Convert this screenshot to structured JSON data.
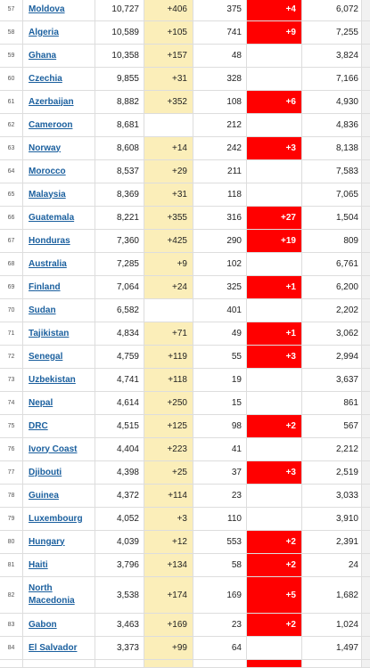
{
  "colors": {
    "new_cases_highlight": "#fbeeb9",
    "new_deaths_highlight": "#ff0000",
    "link": "#1a5f9e"
  },
  "rows": [
    {
      "rank": "57",
      "country": "Moldova",
      "total_cases": "10,727",
      "new_cases": "+406",
      "total_deaths": "375",
      "new_deaths": "+4",
      "recovered": "6,072"
    },
    {
      "rank": "58",
      "country": "Algeria",
      "total_cases": "10,589",
      "new_cases": "+105",
      "total_deaths": "741",
      "new_deaths": "+9",
      "recovered": "7,255"
    },
    {
      "rank": "59",
      "country": "Ghana",
      "total_cases": "10,358",
      "new_cases": "+157",
      "total_deaths": "48",
      "new_deaths": "",
      "recovered": "3,824"
    },
    {
      "rank": "60",
      "country": "Czechia",
      "total_cases": "9,855",
      "new_cases": "+31",
      "total_deaths": "328",
      "new_deaths": "",
      "recovered": "7,166"
    },
    {
      "rank": "61",
      "country": "Azerbaijan",
      "total_cases": "8,882",
      "new_cases": "+352",
      "total_deaths": "108",
      "new_deaths": "+6",
      "recovered": "4,930"
    },
    {
      "rank": "62",
      "country": "Cameroon",
      "total_cases": "8,681",
      "new_cases": "",
      "total_deaths": "212",
      "new_deaths": "",
      "recovered": "4,836"
    },
    {
      "rank": "63",
      "country": "Norway",
      "total_cases": "8,608",
      "new_cases": "+14",
      "total_deaths": "242",
      "new_deaths": "+3",
      "recovered": "8,138"
    },
    {
      "rank": "64",
      "country": "Morocco",
      "total_cases": "8,537",
      "new_cases": "+29",
      "total_deaths": "211",
      "new_deaths": "",
      "recovered": "7,583"
    },
    {
      "rank": "65",
      "country": "Malaysia",
      "total_cases": "8,369",
      "new_cases": "+31",
      "total_deaths": "118",
      "new_deaths": "",
      "recovered": "7,065"
    },
    {
      "rank": "66",
      "country": "Guatemala",
      "total_cases": "8,221",
      "new_cases": "+355",
      "total_deaths": "316",
      "new_deaths": "+27",
      "recovered": "1,504"
    },
    {
      "rank": "67",
      "country": "Honduras",
      "total_cases": "7,360",
      "new_cases": "+425",
      "total_deaths": "290",
      "new_deaths": "+19",
      "recovered": "809"
    },
    {
      "rank": "68",
      "country": "Australia",
      "total_cases": "7,285",
      "new_cases": "+9",
      "total_deaths": "102",
      "new_deaths": "",
      "recovered": "6,761"
    },
    {
      "rank": "69",
      "country": "Finland",
      "total_cases": "7,064",
      "new_cases": "+24",
      "total_deaths": "325",
      "new_deaths": "+1",
      "recovered": "6,200"
    },
    {
      "rank": "70",
      "country": "Sudan",
      "total_cases": "6,582",
      "new_cases": "",
      "total_deaths": "401",
      "new_deaths": "",
      "recovered": "2,202"
    },
    {
      "rank": "71",
      "country": "Tajikistan",
      "total_cases": "4,834",
      "new_cases": "+71",
      "total_deaths": "49",
      "new_deaths": "+1",
      "recovered": "3,062"
    },
    {
      "rank": "72",
      "country": "Senegal",
      "total_cases": "4,759",
      "new_cases": "+119",
      "total_deaths": "55",
      "new_deaths": "+3",
      "recovered": "2,994"
    },
    {
      "rank": "73",
      "country": "Uzbekistan",
      "total_cases": "4,741",
      "new_cases": "+118",
      "total_deaths": "19",
      "new_deaths": "",
      "recovered": "3,637"
    },
    {
      "rank": "74",
      "country": "Nepal",
      "total_cases": "4,614",
      "new_cases": "+250",
      "total_deaths": "15",
      "new_deaths": "",
      "recovered": "861"
    },
    {
      "rank": "75",
      "country": "DRC",
      "total_cases": "4,515",
      "new_cases": "+125",
      "total_deaths": "98",
      "new_deaths": "+2",
      "recovered": "567"
    },
    {
      "rank": "76",
      "country": "Ivory Coast",
      "total_cases": "4,404",
      "new_cases": "+223",
      "total_deaths": "41",
      "new_deaths": "",
      "recovered": "2,212"
    },
    {
      "rank": "77",
      "country": "Djibouti",
      "total_cases": "4,398",
      "new_cases": "+25",
      "total_deaths": "37",
      "new_deaths": "+3",
      "recovered": "2,519"
    },
    {
      "rank": "78",
      "country": "Guinea",
      "total_cases": "4,372",
      "new_cases": "+114",
      "total_deaths": "23",
      "new_deaths": "",
      "recovered": "3,033"
    },
    {
      "rank": "79",
      "country": "Luxembourg",
      "total_cases": "4,052",
      "new_cases": "+3",
      "total_deaths": "110",
      "new_deaths": "",
      "recovered": "3,910"
    },
    {
      "rank": "80",
      "country": "Hungary",
      "total_cases": "4,039",
      "new_cases": "+12",
      "total_deaths": "553",
      "new_deaths": "+2",
      "recovered": "2,391"
    },
    {
      "rank": "81",
      "country": "Haiti",
      "total_cases": "3,796",
      "new_cases": "+134",
      "total_deaths": "58",
      "new_deaths": "+2",
      "recovered": "24"
    },
    {
      "rank": "82",
      "country": "North Macedonia",
      "total_cases": "3,538",
      "new_cases": "+174",
      "total_deaths": "169",
      "new_deaths": "+5",
      "recovered": "1,682"
    },
    {
      "rank": "83",
      "country": "Gabon",
      "total_cases": "3,463",
      "new_cases": "+169",
      "total_deaths": "23",
      "new_deaths": "+2",
      "recovered": "1,024"
    },
    {
      "rank": "84",
      "country": "El Salvador",
      "total_cases": "3,373",
      "new_cases": "+99",
      "total_deaths": "64",
      "new_deaths": "",
      "recovered": "1,497"
    }
  ]
}
